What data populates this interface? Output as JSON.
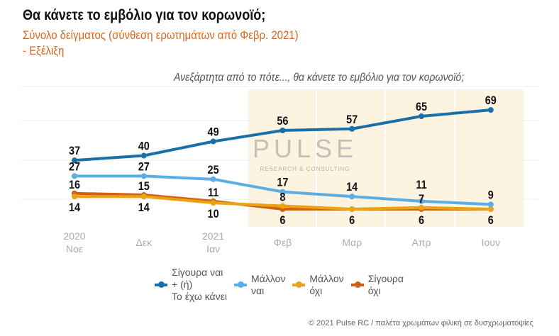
{
  "header": {
    "title": "Θα κάνετε το εμβόλιο για τον κορωνοϊό;",
    "subtitle_line1": "Σύνολο δείγματος (σύνθεση ερωτημάτων από Φεβρ. 2021)",
    "subtitle_line2": " - Εξέλιξη",
    "question": "Ανεξάρτητα από το πότε..., θα κάνετε το εμβόλιο για τον κορωνοϊό;"
  },
  "watermark": {
    "brand": "PULSE",
    "tagline": "RESEARCH & CONSULTING"
  },
  "footer": "© 2021 Pulse RC  /  παλέτα χρωμάτων φιλική σε δυσχρωματοψίες",
  "chart_data": {
    "type": "line",
    "title": "Θα κάνετε το εμβόλιο για τον κορωνοϊό;",
    "categories": [
      [
        "2020",
        "Νοε"
      ],
      [
        "",
        "Δεκ"
      ],
      [
        "2021",
        "Ιαν"
      ],
      [
        "",
        "Φεβ"
      ],
      [
        "",
        "Μαρ"
      ],
      [
        "",
        "Απρ"
      ],
      [
        "",
        "Ιουν"
      ]
    ],
    "highlight_from_index": 3,
    "ylim": [
      0,
      75
    ],
    "legend_position": "bottom",
    "series": [
      {
        "name": "Σίγουρα ναι + (ή) Το έχω κάνει",
        "legend_lines": [
          "Σίγουρα ναι",
          "+ (ή)",
          "Το έχω κάνει"
        ],
        "color": "#1a6fa8",
        "values": [
          37,
          40,
          49,
          56,
          57,
          65,
          69
        ],
        "label_pos": "above"
      },
      {
        "name": "Μάλλον ναι",
        "legend_lines": [
          "Μάλλον",
          "ναι"
        ],
        "color": "#5aaee3",
        "values": [
          27,
          27,
          25,
          17,
          14,
          11,
          9
        ],
        "label_pos": "above"
      },
      {
        "name": "Μάλλον όχι",
        "legend_lines": [
          "Μάλλον",
          "όχι"
        ],
        "color": "#e8a317",
        "values": [
          14,
          14,
          10,
          8,
          6,
          7,
          6
        ],
        "label_pos": "mixed"
      },
      {
        "name": "Σίγουρα όχι",
        "legend_lines": [
          "Σίγουρα",
          "όχι"
        ],
        "color": "#d4600f",
        "values": [
          16,
          15,
          11,
          6,
          6,
          6,
          6
        ],
        "label_pos": "mixed"
      }
    ],
    "data_labels_above_low": [
      "16",
      "15",
      "11",
      "8",
      "",
      "7",
      ""
    ],
    "data_labels_below_low": [
      "14",
      "14",
      "10",
      "6",
      "6",
      "6",
      "6"
    ]
  }
}
